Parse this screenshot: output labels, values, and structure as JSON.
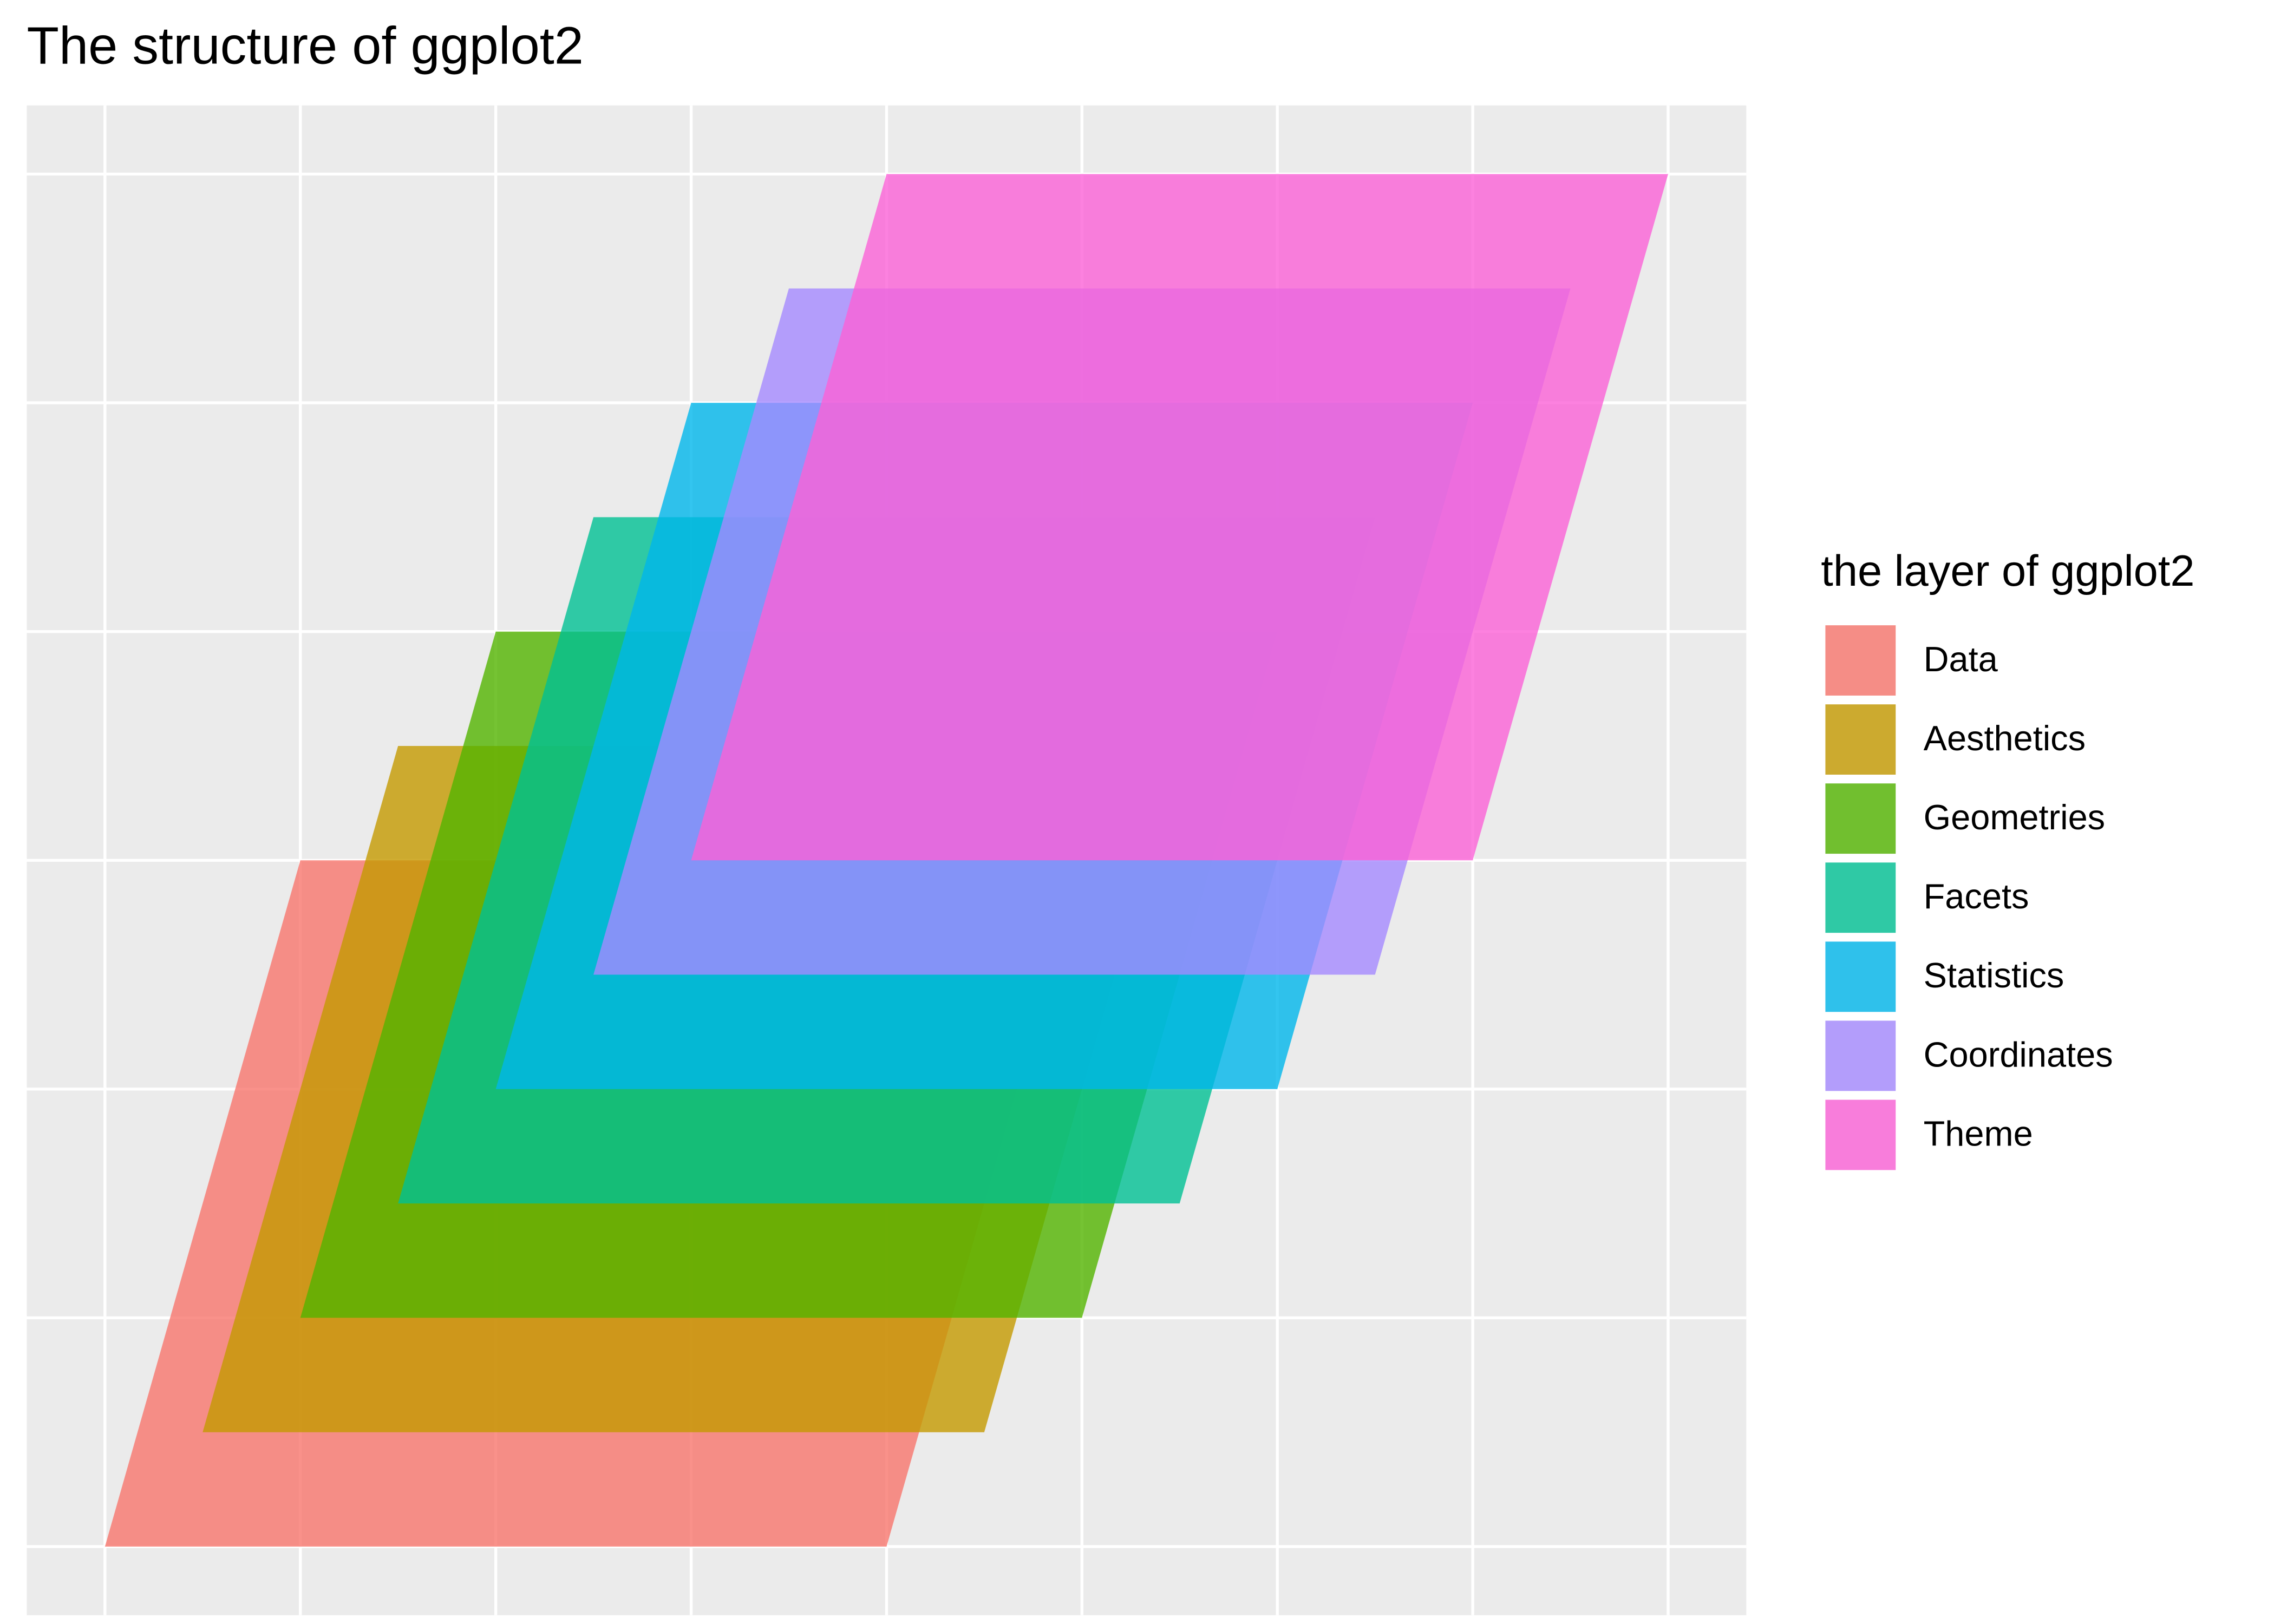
{
  "chart_data": {
    "type": "polygon",
    "title": "The structure of ggplot2",
    "legend_title": "the layer of ggplot2",
    "legend_position": "right",
    "alpha": 0.8,
    "grid": true,
    "xlim": [
      -0.4,
      8.4
    ],
    "ylim": [
      -0.3,
      6.3
    ],
    "xticks": [
      0,
      1,
      2,
      3,
      4,
      5,
      6,
      7,
      8
    ],
    "yticks": [
      0,
      1,
      2,
      3,
      4,
      5,
      6
    ],
    "series": [
      {
        "name": "Data",
        "color": "#F8766D",
        "x": [
          0,
          4,
          5,
          1
        ],
        "y": [
          0,
          0,
          3,
          3
        ]
      },
      {
        "name": "Aesthetics",
        "color": "#C49A00",
        "x": [
          0.5,
          4.5,
          5.5,
          1.5
        ],
        "y": [
          0.5,
          0.5,
          3.5,
          3.5
        ]
      },
      {
        "name": "Geometries",
        "color": "#53B400",
        "x": [
          1,
          5,
          6,
          2
        ],
        "y": [
          1,
          1,
          4,
          4
        ]
      },
      {
        "name": "Facets",
        "color": "#00C094",
        "x": [
          1.5,
          5.5,
          6.5,
          2.5
        ],
        "y": [
          1.5,
          1.5,
          4.5,
          4.5
        ]
      },
      {
        "name": "Statistics",
        "color": "#00B6EB",
        "x": [
          2,
          6,
          7,
          3
        ],
        "y": [
          2,
          2,
          5,
          5
        ]
      },
      {
        "name": "Coordinates",
        "color": "#A58AFF",
        "x": [
          2.5,
          6.5,
          7.5,
          3.5
        ],
        "y": [
          2.5,
          2.5,
          5.5,
          5.5
        ]
      },
      {
        "name": "Theme",
        "color": "#FB61D7",
        "x": [
          3,
          7,
          8,
          4
        ],
        "y": [
          3,
          3,
          6,
          6
        ]
      }
    ]
  }
}
